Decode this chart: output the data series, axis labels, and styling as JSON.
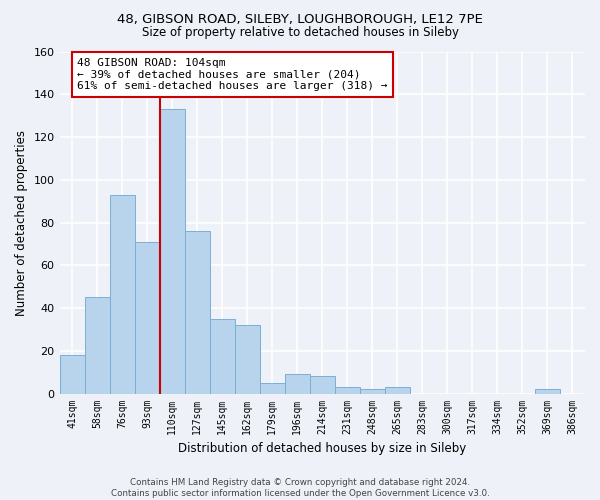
{
  "title_line1": "48, GIBSON ROAD, SILEBY, LOUGHBOROUGH, LE12 7PE",
  "title_line2": "Size of property relative to detached houses in Sileby",
  "xlabel": "Distribution of detached houses by size in Sileby",
  "ylabel": "Number of detached properties",
  "categories": [
    "41sqm",
    "58sqm",
    "76sqm",
    "93sqm",
    "110sqm",
    "127sqm",
    "145sqm",
    "162sqm",
    "179sqm",
    "196sqm",
    "214sqm",
    "231sqm",
    "248sqm",
    "265sqm",
    "283sqm",
    "300sqm",
    "317sqm",
    "334sqm",
    "352sqm",
    "369sqm",
    "386sqm"
  ],
  "values": [
    18,
    45,
    93,
    71,
    133,
    76,
    35,
    32,
    5,
    9,
    8,
    3,
    2,
    3,
    0,
    0,
    0,
    0,
    0,
    2,
    0
  ],
  "bar_color": "#b8d4ec",
  "bar_edge_color": "#7aafd4",
  "highlight_bar_index": 4,
  "highlight_color": "#cc0000",
  "ylim": [
    0,
    160
  ],
  "yticks": [
    0,
    20,
    40,
    60,
    80,
    100,
    120,
    140,
    160
  ],
  "annotation_title": "48 GIBSON ROAD: 104sqm",
  "annotation_line2": "← 39% of detached houses are smaller (204)",
  "annotation_line3": "61% of semi-detached houses are larger (318) →",
  "annotation_box_color": "#ffffff",
  "annotation_box_edge": "#cc0000",
  "footer_line1": "Contains HM Land Registry data © Crown copyright and database right 2024.",
  "footer_line2": "Contains public sector information licensed under the Open Government Licence v3.0.",
  "background_color": "#eef2f8"
}
